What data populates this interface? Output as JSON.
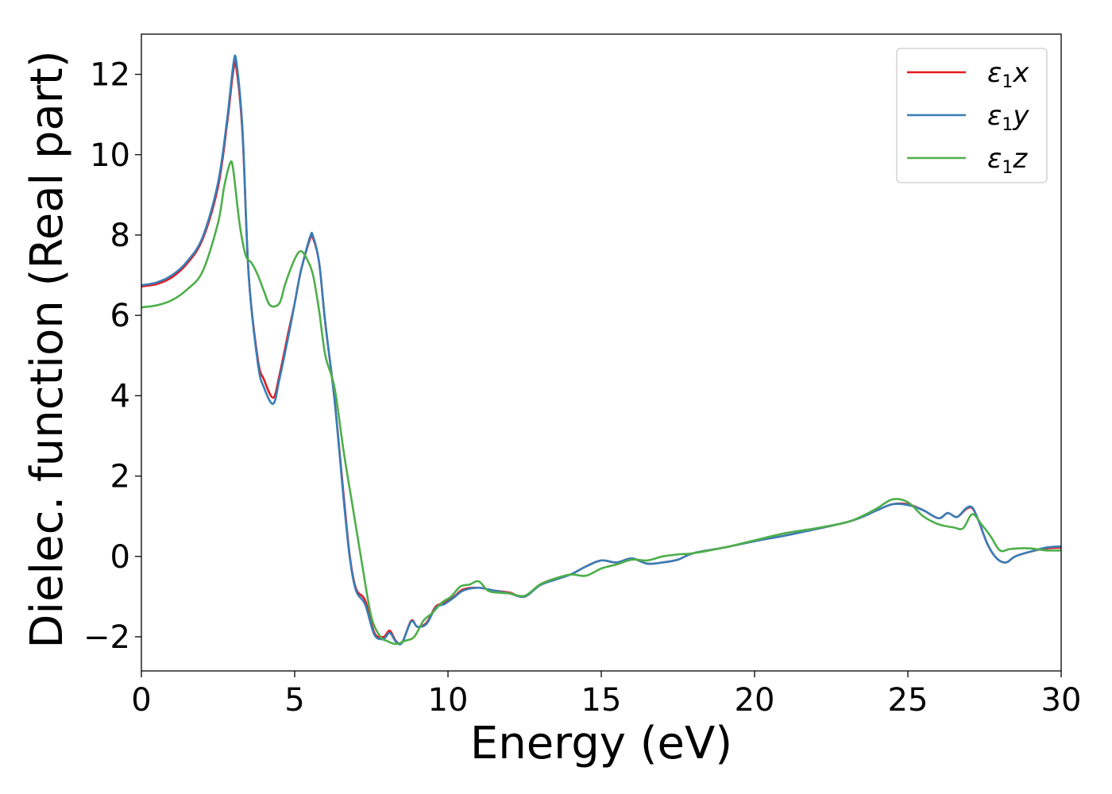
{
  "chart_data": {
    "type": "line",
    "xlabel": "Energy (eV)",
    "ylabel": "Dielec. function (Real part)",
    "xlim": [
      0,
      30
    ],
    "ylim": [
      -2.85,
      13.0
    ],
    "xticks": [
      0,
      5,
      10,
      15,
      20,
      25,
      30
    ],
    "yticks": [
      -2,
      0,
      2,
      4,
      6,
      8,
      10,
      12
    ],
    "xtick_labels": [
      "0",
      "5",
      "10",
      "15",
      "20",
      "25",
      "30"
    ],
    "ytick_labels": [
      "−2",
      "0",
      "2",
      "4",
      "6",
      "8",
      "10",
      "12"
    ],
    "grid": false,
    "legend_position": "top-right",
    "series": [
      {
        "name": "ε₁x",
        "legend": {
          "base": "ε",
          "sub": "1",
          "tail": "x"
        },
        "color": "#e41a1c",
        "x": [
          0,
          0.5,
          1,
          1.5,
          2,
          2.5,
          2.8,
          3.0,
          3.1,
          3.3,
          3.5,
          3.8,
          4.0,
          4.3,
          4.5,
          4.8,
          5.0,
          5.2,
          5.5,
          5.6,
          5.8,
          6.0,
          6.3,
          6.6,
          6.8,
          7.0,
          7.3,
          7.6,
          7.9,
          8.1,
          8.3,
          8.5,
          8.8,
          9.0,
          9.3,
          9.6,
          9.9,
          10.2,
          10.5,
          11.0,
          11.5,
          12.0,
          12.5,
          13.0,
          13.5,
          14.0,
          14.5,
          15.0,
          15.5,
          16.0,
          16.5,
          17.0,
          17.5,
          18.0,
          19.0,
          20.0,
          21.0,
          22.0,
          23.0,
          23.5,
          24.0,
          24.5,
          25.0,
          25.5,
          26.0,
          26.3,
          26.6,
          26.9,
          27.1,
          27.3,
          27.6,
          27.9,
          28.2,
          28.5,
          29.0,
          29.5,
          30.0
        ],
        "y": [
          6.72,
          6.78,
          6.95,
          7.3,
          7.9,
          9.2,
          10.8,
          12.1,
          12.15,
          10.5,
          7.0,
          4.9,
          4.4,
          3.95,
          4.5,
          5.6,
          6.3,
          7.1,
          7.9,
          7.92,
          7.3,
          5.8,
          3.9,
          1.5,
          0.0,
          -0.8,
          -1.1,
          -1.9,
          -2.0,
          -1.85,
          -2.1,
          -2.15,
          -1.6,
          -1.75,
          -1.65,
          -1.25,
          -1.15,
          -1.0,
          -0.82,
          -0.78,
          -0.85,
          -0.9,
          -1.0,
          -0.7,
          -0.55,
          -0.45,
          -0.25,
          -0.1,
          -0.15,
          -0.05,
          -0.18,
          -0.15,
          -0.08,
          0.08,
          0.22,
          0.38,
          0.52,
          0.68,
          0.85,
          0.98,
          1.15,
          1.3,
          1.3,
          1.15,
          0.95,
          1.08,
          0.98,
          1.18,
          1.2,
          0.9,
          0.3,
          -0.05,
          -0.15,
          0.0,
          0.12,
          0.2,
          0.22
        ]
      },
      {
        "name": "ε₁y",
        "legend": {
          "base": "ε",
          "sub": "1",
          "tail": "y"
        },
        "color": "#377eb8",
        "x": [
          0,
          0.5,
          1,
          1.5,
          2,
          2.5,
          2.8,
          3.0,
          3.1,
          3.3,
          3.5,
          3.8,
          4.0,
          4.3,
          4.5,
          4.8,
          5.0,
          5.2,
          5.5,
          5.6,
          5.8,
          6.0,
          6.3,
          6.6,
          6.8,
          7.0,
          7.3,
          7.6,
          7.9,
          8.1,
          8.3,
          8.5,
          8.8,
          9.0,
          9.3,
          9.6,
          9.9,
          10.2,
          10.5,
          11.0,
          11.5,
          12.0,
          12.5,
          13.0,
          13.5,
          14.0,
          14.5,
          15.0,
          15.5,
          16.0,
          16.5,
          17.0,
          17.5,
          18.0,
          19.0,
          20.0,
          21.0,
          22.0,
          23.0,
          23.5,
          24.0,
          24.5,
          25.0,
          25.5,
          26.0,
          26.3,
          26.6,
          26.9,
          27.1,
          27.3,
          27.6,
          27.9,
          28.2,
          28.5,
          29.0,
          29.5,
          30.0
        ],
        "y": [
          6.75,
          6.82,
          7.0,
          7.35,
          7.95,
          9.3,
          10.9,
          12.25,
          12.3,
          10.6,
          7.0,
          4.8,
          4.2,
          3.8,
          4.4,
          5.5,
          6.3,
          7.1,
          7.95,
          7.97,
          7.3,
          5.8,
          3.9,
          1.4,
          -0.05,
          -0.85,
          -1.2,
          -1.95,
          -2.05,
          -1.9,
          -2.12,
          -2.15,
          -1.62,
          -1.75,
          -1.68,
          -1.28,
          -1.18,
          -1.02,
          -0.85,
          -0.78,
          -0.85,
          -0.92,
          -1.0,
          -0.72,
          -0.58,
          -0.45,
          -0.25,
          -0.1,
          -0.15,
          -0.05,
          -0.18,
          -0.15,
          -0.08,
          0.08,
          0.22,
          0.38,
          0.52,
          0.68,
          0.85,
          0.98,
          1.15,
          1.3,
          1.28,
          1.15,
          0.95,
          1.08,
          0.98,
          1.2,
          1.22,
          0.9,
          0.3,
          -0.05,
          -0.15,
          0.0,
          0.12,
          0.22,
          0.25
        ]
      },
      {
        "name": "ε₁z",
        "legend": {
          "base": "ε",
          "sub": "1",
          "tail": "z"
        },
        "color": "#4daf4a",
        "x": [
          0,
          0.5,
          1,
          1.5,
          2,
          2.5,
          2.7,
          2.9,
          3.0,
          3.2,
          3.4,
          3.6,
          3.8,
          4.0,
          4.2,
          4.5,
          4.7,
          5.0,
          5.2,
          5.4,
          5.6,
          5.8,
          6.0,
          6.3,
          6.6,
          6.9,
          7.2,
          7.5,
          7.8,
          8.0,
          8.3,
          8.6,
          8.9,
          9.2,
          9.5,
          9.8,
          10.1,
          10.4,
          10.7,
          11.0,
          11.3,
          11.6,
          12.0,
          12.5,
          13.0,
          13.5,
          14.0,
          14.5,
          15.0,
          15.5,
          16.0,
          16.5,
          17.0,
          17.5,
          18.0,
          19.0,
          20.0,
          21.0,
          22.0,
          23.0,
          23.5,
          24.0,
          24.5,
          25.0,
          25.5,
          26.0,
          26.5,
          26.8,
          27.1,
          27.4,
          27.7,
          28.0,
          28.3,
          28.6,
          29.0,
          29.5,
          30.0
        ],
        "y": [
          6.2,
          6.25,
          6.38,
          6.65,
          7.1,
          8.3,
          9.2,
          9.8,
          9.6,
          8.3,
          7.5,
          7.3,
          7.0,
          6.6,
          6.25,
          6.3,
          6.8,
          7.4,
          7.6,
          7.4,
          7.0,
          6.1,
          5.0,
          4.2,
          2.6,
          1.2,
          -0.2,
          -1.5,
          -2.0,
          -2.1,
          -2.18,
          -2.1,
          -2.0,
          -1.6,
          -1.4,
          -1.15,
          -1.0,
          -0.75,
          -0.7,
          -0.62,
          -0.85,
          -0.9,
          -0.92,
          -0.98,
          -0.7,
          -0.55,
          -0.45,
          -0.48,
          -0.3,
          -0.2,
          -0.08,
          -0.1,
          0.0,
          0.05,
          0.08,
          0.22,
          0.4,
          0.58,
          0.7,
          0.85,
          1.0,
          1.2,
          1.42,
          1.35,
          1.0,
          0.8,
          0.72,
          0.7,
          1.05,
          0.8,
          0.5,
          0.15,
          0.18,
          0.2,
          0.2,
          0.15,
          0.15
        ]
      }
    ]
  }
}
